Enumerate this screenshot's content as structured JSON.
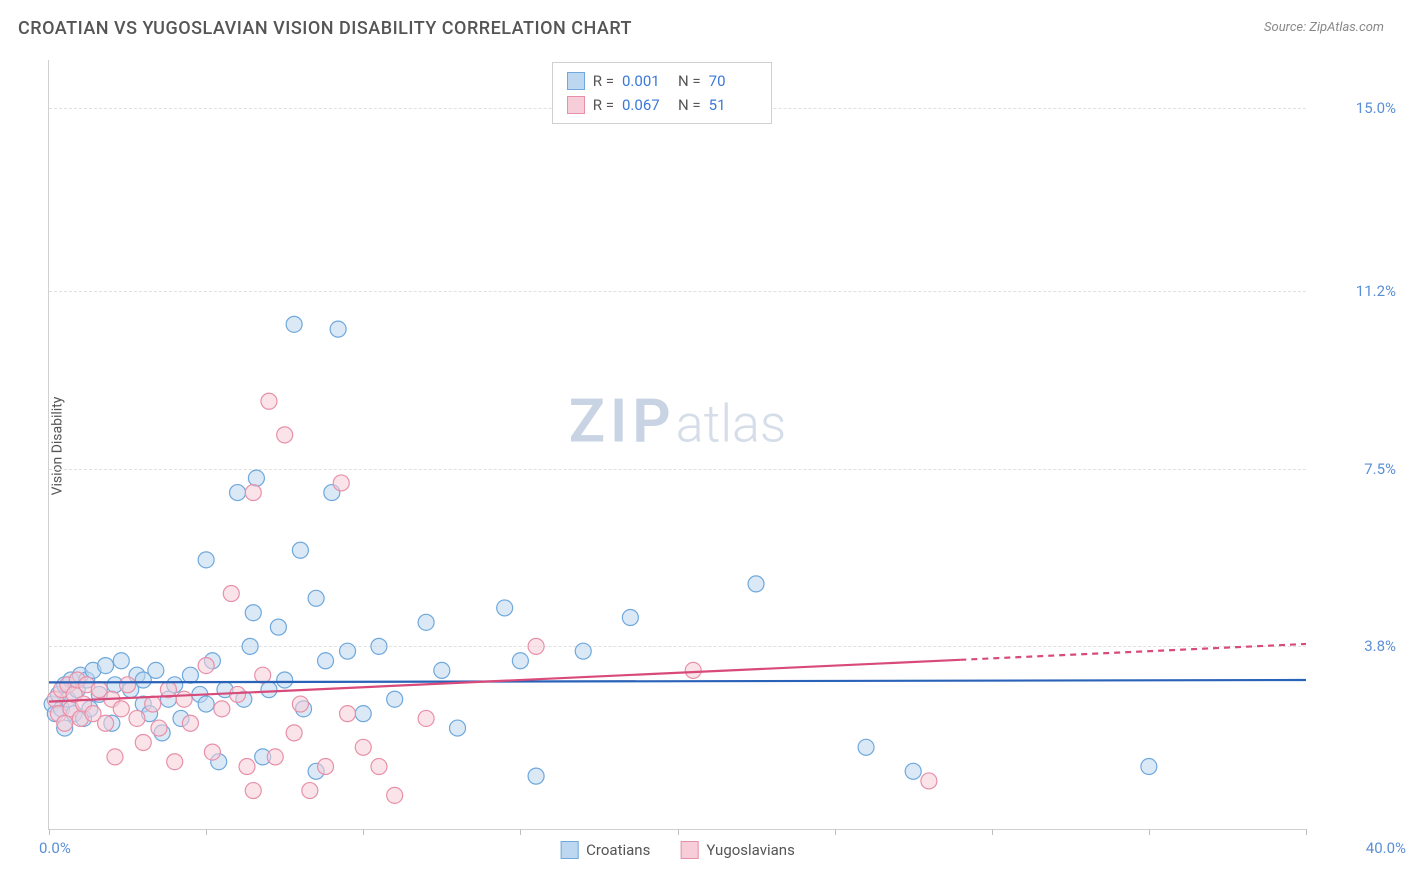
{
  "title": "CROATIAN VS YUGOSLAVIAN VISION DISABILITY CORRELATION CHART",
  "source_label": "Source: ZipAtlas.com",
  "y_axis_label": "Vision Disability",
  "watermark": {
    "zip": "ZIP",
    "atlas": "atlas"
  },
  "chart": {
    "type": "scatter",
    "xlim": [
      0.0,
      40.0
    ],
    "ylim": [
      0.0,
      16.0
    ],
    "x_min_label": "0.0%",
    "x_max_label": "40.0%",
    "y_ticks": [
      {
        "value": 3.8,
        "label": "3.8%"
      },
      {
        "value": 7.5,
        "label": "7.5%"
      },
      {
        "value": 11.2,
        "label": "11.2%"
      },
      {
        "value": 15.0,
        "label": "15.0%"
      }
    ],
    "x_tick_values": [
      0,
      5,
      10,
      15,
      20,
      25,
      30,
      35,
      40
    ],
    "grid_color": "#e0e0e0",
    "background_color": "#ffffff",
    "marker_radius": 8,
    "marker_stroke_width": 1.2,
    "series": [
      {
        "key": "croatians",
        "label": "Croatians",
        "fill": "#bdd7f0",
        "stroke": "#6ea8dc",
        "fill_opacity": 0.55,
        "R": "0.001",
        "N": "70",
        "regression": {
          "x1": 0,
          "y1": 3.05,
          "x2": 40,
          "y2": 3.1,
          "color": "#2a62b8",
          "width": 2.2,
          "dash_from_x": null
        },
        "points": [
          [
            0.1,
            2.6
          ],
          [
            0.2,
            2.4
          ],
          [
            0.3,
            2.8
          ],
          [
            0.4,
            2.5
          ],
          [
            0.5,
            3.0
          ],
          [
            0.5,
            2.1
          ],
          [
            0.6,
            2.7
          ],
          [
            0.7,
            3.1
          ],
          [
            0.8,
            2.4
          ],
          [
            0.9,
            2.9
          ],
          [
            1.0,
            3.2
          ],
          [
            1.1,
            2.3
          ],
          [
            1.2,
            3.1
          ],
          [
            1.3,
            2.5
          ],
          [
            1.4,
            3.3
          ],
          [
            1.6,
            2.8
          ],
          [
            1.8,
            3.4
          ],
          [
            2.0,
            2.2
          ],
          [
            2.1,
            3.0
          ],
          [
            2.3,
            3.5
          ],
          [
            2.6,
            2.9
          ],
          [
            2.8,
            3.2
          ],
          [
            3.0,
            2.6
          ],
          [
            3.0,
            3.1
          ],
          [
            3.2,
            2.4
          ],
          [
            3.4,
            3.3
          ],
          [
            3.6,
            2.0
          ],
          [
            3.8,
            2.7
          ],
          [
            4.0,
            3.0
          ],
          [
            4.2,
            2.3
          ],
          [
            4.5,
            3.2
          ],
          [
            4.8,
            2.8
          ],
          [
            5.0,
            5.6
          ],
          [
            5.0,
            2.6
          ],
          [
            5.2,
            3.5
          ],
          [
            5.4,
            1.4
          ],
          [
            5.6,
            2.9
          ],
          [
            6.0,
            7.0
          ],
          [
            6.2,
            2.7
          ],
          [
            6.4,
            3.8
          ],
          [
            6.5,
            4.5
          ],
          [
            6.6,
            7.3
          ],
          [
            6.8,
            1.5
          ],
          [
            7.0,
            2.9
          ],
          [
            7.3,
            4.2
          ],
          [
            7.5,
            3.1
          ],
          [
            7.8,
            10.5
          ],
          [
            8.0,
            5.8
          ],
          [
            8.1,
            2.5
          ],
          [
            8.5,
            4.8
          ],
          [
            8.8,
            3.5
          ],
          [
            8.5,
            1.2
          ],
          [
            9.0,
            7.0
          ],
          [
            9.2,
            10.4
          ],
          [
            9.5,
            3.7
          ],
          [
            10.0,
            2.4
          ],
          [
            10.5,
            3.8
          ],
          [
            11.0,
            2.7
          ],
          [
            12.0,
            4.3
          ],
          [
            12.5,
            3.3
          ],
          [
            13.0,
            2.1
          ],
          [
            14.5,
            4.6
          ],
          [
            15.0,
            3.5
          ],
          [
            15.5,
            1.1
          ],
          [
            17.0,
            3.7
          ],
          [
            18.5,
            4.4
          ],
          [
            22.5,
            5.1
          ],
          [
            26.0,
            1.7
          ],
          [
            27.5,
            1.2
          ],
          [
            35.0,
            1.3
          ]
        ]
      },
      {
        "key": "yugoslavians",
        "label": "Yugoslavians",
        "fill": "#f6cdd8",
        "stroke": "#e890a8",
        "fill_opacity": 0.55,
        "R": "0.067",
        "N": "51",
        "regression": {
          "x1": 0,
          "y1": 2.65,
          "x2": 40,
          "y2": 3.85,
          "color": "#d84a7a",
          "width": 2.2,
          "dash_from_x": 29
        },
        "points": [
          [
            0.2,
            2.7
          ],
          [
            0.3,
            2.4
          ],
          [
            0.4,
            2.9
          ],
          [
            0.5,
            2.2
          ],
          [
            0.6,
            3.0
          ],
          [
            0.7,
            2.5
          ],
          [
            0.8,
            2.8
          ],
          [
            0.9,
            3.1
          ],
          [
            1.0,
            2.3
          ],
          [
            1.1,
            2.6
          ],
          [
            1.2,
            3.0
          ],
          [
            1.4,
            2.4
          ],
          [
            1.6,
            2.9
          ],
          [
            1.8,
            2.2
          ],
          [
            2.0,
            2.7
          ],
          [
            2.1,
            1.5
          ],
          [
            2.3,
            2.5
          ],
          [
            2.5,
            3.0
          ],
          [
            2.8,
            2.3
          ],
          [
            3.0,
            1.8
          ],
          [
            3.3,
            2.6
          ],
          [
            3.5,
            2.1
          ],
          [
            3.8,
            2.9
          ],
          [
            4.0,
            1.4
          ],
          [
            4.3,
            2.7
          ],
          [
            4.5,
            2.2
          ],
          [
            5.0,
            3.4
          ],
          [
            5.2,
            1.6
          ],
          [
            5.5,
            2.5
          ],
          [
            5.8,
            4.9
          ],
          [
            6.0,
            2.8
          ],
          [
            6.3,
            1.3
          ],
          [
            6.5,
            0.8
          ],
          [
            6.5,
            7.0
          ],
          [
            6.8,
            3.2
          ],
          [
            7.0,
            8.9
          ],
          [
            7.2,
            1.5
          ],
          [
            7.5,
            8.2
          ],
          [
            7.8,
            2.0
          ],
          [
            8.0,
            2.6
          ],
          [
            8.3,
            0.8
          ],
          [
            8.8,
            1.3
          ],
          [
            9.3,
            7.2
          ],
          [
            9.5,
            2.4
          ],
          [
            10.0,
            1.7
          ],
          [
            10.5,
            1.3
          ],
          [
            11.0,
            0.7
          ],
          [
            12.0,
            2.3
          ],
          [
            15.5,
            3.8
          ],
          [
            20.5,
            3.3
          ],
          [
            28.0,
            1.0
          ]
        ]
      }
    ],
    "stat_legend": {
      "R_label": "R =",
      "N_label": "N ="
    }
  }
}
